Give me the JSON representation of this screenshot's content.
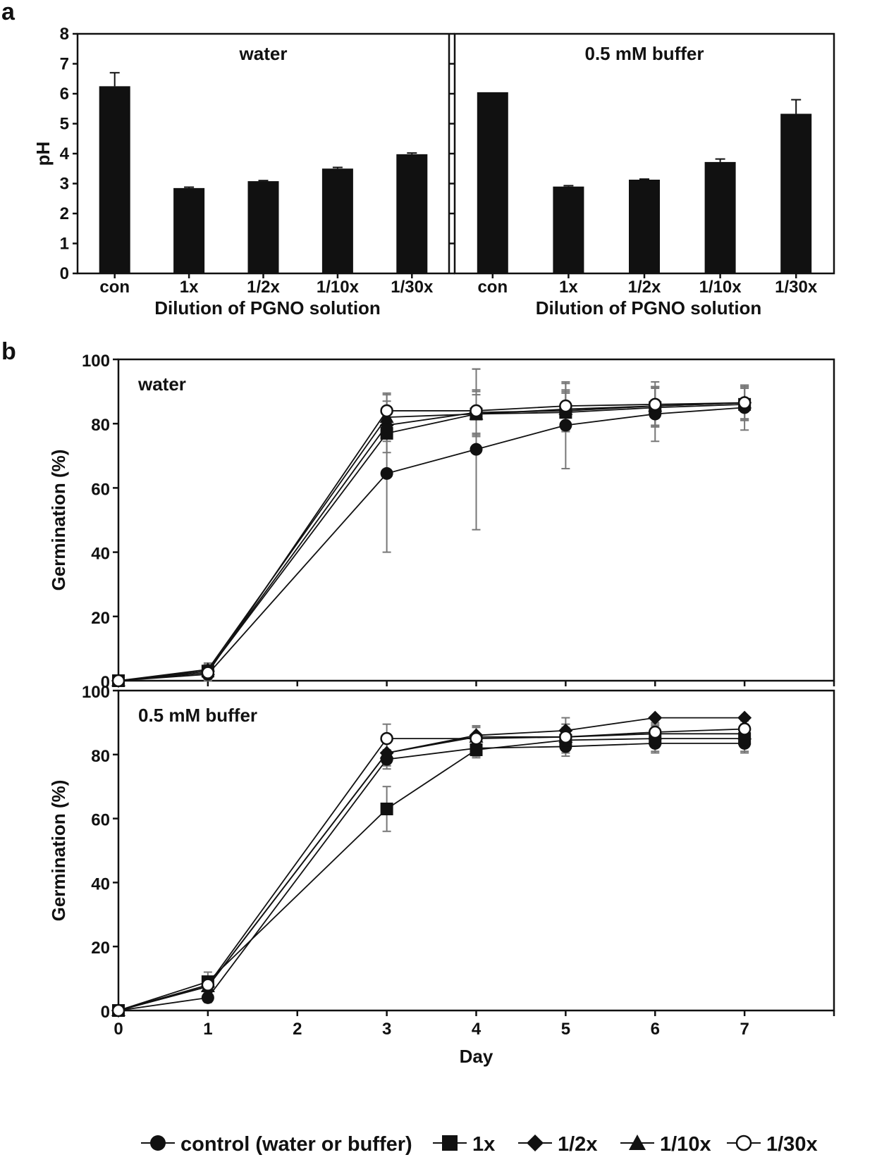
{
  "figure": {
    "panel_a_letter": "a",
    "panel_b_letter": "b",
    "colors": {
      "ink": "#111111",
      "errorbar": "#777777",
      "background": "#ffffff"
    }
  },
  "chart_data": [
    {
      "id": "a-water",
      "type": "bar",
      "title": "water",
      "xlabel": "Dilution of PGNO solution",
      "ylabel": "pH",
      "categories": [
        "con",
        "1x",
        "1/2x",
        "1/10x",
        "1/30x"
      ],
      "values": [
        6.25,
        2.85,
        3.08,
        3.5,
        3.98
      ],
      "errors": [
        0.45,
        0.03,
        0.02,
        0.04,
        0.04
      ],
      "ylim": [
        0,
        8
      ],
      "yticks": [
        0,
        1,
        2,
        3,
        4,
        5,
        6,
        7,
        8
      ],
      "yticklabels": [
        "0",
        "1",
        "2",
        "3",
        "4",
        "5",
        "6",
        "7",
        "8"
      ]
    },
    {
      "id": "a-buffer",
      "type": "bar",
      "title": "0.5 mM buffer",
      "xlabel": "Dilution of PGNO solution",
      "ylabel": "",
      "categories": [
        "con",
        "1x",
        "1/2x",
        "1/10x",
        "1/30x"
      ],
      "values": [
        6.05,
        2.9,
        3.13,
        3.72,
        5.33
      ],
      "errors": [
        0.0,
        0.03,
        0.02,
        0.1,
        0.47
      ],
      "ylim": [
        0,
        8
      ]
    },
    {
      "id": "b-water",
      "type": "line",
      "title": "water",
      "ylabel": "Germination (%)",
      "xlabel": "",
      "x": [
        0,
        1,
        3,
        4,
        5,
        6,
        7
      ],
      "xlim": [
        0,
        8
      ],
      "ylim": [
        0,
        100
      ],
      "yticks": [
        0,
        20,
        40,
        60,
        80,
        100
      ],
      "yticklabels": [
        "0",
        "20",
        "40",
        "60",
        "80",
        "100"
      ],
      "series": [
        {
          "name": "control (water or buffer)",
          "marker": "circle",
          "values": [
            0,
            2,
            64.5,
            72,
            79.5,
            83,
            85
          ],
          "errors": [
            0,
            2,
            24.5,
            25,
            13.5,
            8.5,
            7
          ]
        },
        {
          "name": "1x",
          "marker": "square",
          "values": [
            0,
            3,
            77,
            83,
            83.5,
            85,
            86
          ],
          "errors": [
            0,
            2,
            6,
            6,
            6,
            6,
            5
          ]
        },
        {
          "name": "1/2x",
          "marker": "diamond",
          "values": [
            0,
            3,
            79.5,
            83.5,
            84,
            85.5,
            86.5
          ],
          "errors": [
            0,
            2,
            5,
            7,
            6,
            6,
            5
          ]
        },
        {
          "name": "1/10x",
          "marker": "triangle",
          "values": [
            0,
            3.5,
            82,
            83,
            84.5,
            85.5,
            86.5
          ],
          "errors": [
            0,
            2,
            5,
            7,
            6,
            6,
            5
          ]
        },
        {
          "name": "1/30x",
          "marker": "open-circle",
          "values": [
            0,
            2.5,
            84,
            84,
            85.5,
            86,
            86.5
          ],
          "errors": [
            0,
            2,
            5.5,
            13,
            7,
            7,
            5.5
          ]
        }
      ]
    },
    {
      "id": "b-buffer",
      "type": "line",
      "title": "0.5 mM buffer",
      "ylabel": "Germination (%)",
      "xlabel": "Day",
      "x": [
        0,
        1,
        3,
        4,
        5,
        6,
        7
      ],
      "xlim": [
        0,
        8
      ],
      "ylim": [
        0,
        100
      ],
      "xticks": [
        0,
        1,
        2,
        3,
        4,
        5,
        6,
        7
      ],
      "xticklabels": [
        "0",
        "1",
        "2",
        "3",
        "4",
        "5",
        "6",
        "7"
      ],
      "yticks": [
        0,
        20,
        40,
        60,
        80,
        100
      ],
      "yticklabels": [
        "0",
        "20",
        "40",
        "60",
        "80",
        "100"
      ],
      "series": [
        {
          "name": "control (water or buffer)",
          "marker": "circle",
          "values": [
            0,
            4,
            78.5,
            82,
            82.5,
            83.5,
            83.5
          ],
          "errors": [
            0,
            1.5,
            3,
            2.5,
            3,
            3,
            3
          ]
        },
        {
          "name": "1x",
          "marker": "square",
          "values": [
            0,
            9,
            63,
            81.5,
            84.5,
            85,
            85
          ],
          "errors": [
            0,
            3,
            7,
            2.5,
            4,
            4,
            4
          ]
        },
        {
          "name": "1/2x",
          "marker": "diamond",
          "values": [
            0,
            7.5,
            80.5,
            86,
            87.5,
            91.5,
            91.5
          ],
          "errors": [
            0,
            2,
            4,
            3,
            4,
            0,
            0
          ]
        },
        {
          "name": "1/10x",
          "marker": "triangle",
          "values": [
            0,
            7.5,
            80.5,
            85.5,
            85.5,
            86.5,
            86.5
          ],
          "errors": [
            0,
            2,
            4,
            3,
            4,
            3,
            3
          ]
        },
        {
          "name": "1/30x",
          "marker": "open-circle",
          "values": [
            0,
            8,
            85,
            85,
            85.5,
            87,
            88
          ],
          "errors": [
            0,
            2,
            4.5,
            3.5,
            4,
            3,
            2.5
          ]
        }
      ]
    }
  ],
  "legend": {
    "placement": "bottom",
    "items": [
      {
        "label": "control (water or buffer)",
        "marker": "circle"
      },
      {
        "label": "1x",
        "marker": "square"
      },
      {
        "label": "1/2x",
        "marker": "diamond"
      },
      {
        "label": "1/10x",
        "marker": "triangle"
      },
      {
        "label": "1/30x",
        "marker": "open-circle"
      }
    ]
  }
}
